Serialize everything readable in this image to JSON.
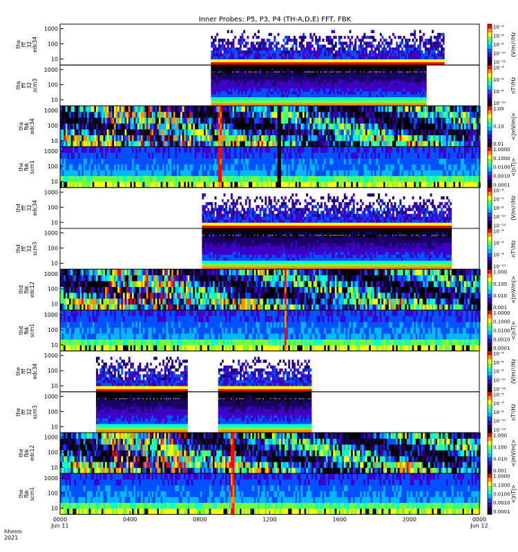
{
  "chart_data": {
    "type": "heatmap",
    "title": "Inner Probes: P5, P3, P4 (TH-A,D,E) FFT, FBK",
    "x_axis": {
      "row_label_1": "hhmm",
      "row_label_2": "2021",
      "tick_labels": [
        "0000",
        "0400",
        "0800",
        "1200",
        "1600",
        "2000",
        "0000"
      ],
      "tick_hours": [
        0,
        4,
        8,
        12,
        16,
        20,
        24
      ],
      "date_labels": [
        "Jun 11",
        "Jun 12"
      ],
      "range_hours": [
        0,
        24
      ]
    },
    "y_axis": {
      "scale": "log",
      "range": [
        4,
        2000
      ],
      "tick_labels": [
        "10",
        "100",
        "1000"
      ],
      "tick_values": [
        10,
        100,
        1000
      ]
    },
    "colormap": [
      "#000000",
      "#1a0066",
      "#3c00c8",
      "#0050ff",
      "#00b8ff",
      "#00ffd0",
      "#70ff40",
      "#ffff00",
      "#ff9000",
      "#ff0000"
    ],
    "panels": [
      {
        "label": [
          "tha",
          "fff",
          "32",
          "edc34"
        ],
        "kind": "fff_e",
        "coverage": [
          [
            8.6,
            21.9
          ]
        ],
        "colorbar": {
          "units": "(V/m)²/Hz",
          "tick_labels": [
            "10⁻⁴",
            "10⁻⁶",
            "10⁻⁸",
            "10⁻¹⁰",
            "10⁻¹²"
          ]
        }
      },
      {
        "label": [
          "tha",
          "fff",
          "32",
          "scm3"
        ],
        "kind": "fff_b",
        "coverage": [
          [
            8.6,
            20.9
          ]
        ],
        "colorbar": {
          "units": "nT²/Hz",
          "tick_labels": [
            "10⁻⁴",
            "10⁻⁶",
            "10⁻⁸",
            "10⁻¹⁰"
          ]
        }
      },
      {
        "label": [
          "tha",
          "fbk",
          "edc34"
        ],
        "kind": "fbk_e",
        "coverage": [
          [
            0,
            24
          ]
        ],
        "gaps": [
          [
            12.35,
            12.6
          ]
        ],
        "spikes": [
          9.0,
          9.2
        ],
        "colorbar": {
          "units": "<|mV/m|>",
          "tick_labels": [
            "1.00",
            "0.10",
            "0.01"
          ]
        }
      },
      {
        "label": [
          "tha",
          "fbk",
          "scm1"
        ],
        "kind": "fbk_b",
        "coverage": [
          [
            0,
            24
          ]
        ],
        "gaps": [
          [
            12.35,
            12.6
          ]
        ],
        "spikes": [
          9.0,
          9.2
        ],
        "colorbar": {
          "units": "<|nT|>",
          "tick_labels": [
            "1.0000",
            "0.1000",
            "0.0100",
            "0.0010",
            "0.0001"
          ]
        }
      },
      {
        "label": [
          "thd",
          "fff",
          "32",
          "edc34"
        ],
        "kind": "fff_e",
        "coverage": [
          [
            8.1,
            22.4
          ]
        ],
        "colorbar": {
          "units": "(V/m)²/Hz",
          "tick_labels": [
            "10⁻⁴",
            "10⁻⁶",
            "10⁻⁸",
            "10⁻¹⁰",
            "10⁻¹²"
          ]
        }
      },
      {
        "label": [
          "thd",
          "fff",
          "32",
          "scm3"
        ],
        "kind": "fff_b",
        "coverage": [
          [
            8.1,
            22.4
          ]
        ],
        "colorbar": {
          "units": "nT²/Hz",
          "tick_labels": [
            "10⁻⁴",
            "10⁻⁶",
            "10⁻⁸",
            "10⁻¹⁰"
          ]
        }
      },
      {
        "label": [
          "thd",
          "fbk",
          "edc12"
        ],
        "kind": "fbk_e",
        "coverage": [
          [
            0,
            24
          ]
        ],
        "spikes": [
          12.75,
          12.95
        ],
        "colorbar": {
          "units": "<|mV/m|>",
          "tick_labels": [
            "1.000",
            "0.100",
            "0.010",
            "0.001"
          ]
        }
      },
      {
        "label": [
          "thd",
          "fbk",
          "scm1"
        ],
        "kind": "fbk_b",
        "coverage": [
          [
            0,
            24
          ]
        ],
        "spikes": [
          12.75,
          12.95
        ],
        "colorbar": {
          "units": "<|nT|>",
          "tick_labels": [
            "1.0000",
            "0.1000",
            "0.0100",
            "0.0010",
            "0.0001"
          ]
        }
      },
      {
        "label": [
          "the",
          "fff",
          "32",
          "edc34"
        ],
        "kind": "fff_e",
        "coverage": [
          [
            2.0,
            7.2
          ],
          [
            9.0,
            14.3
          ]
        ],
        "colorbar": {
          "units": "(V/m)²/Hz",
          "tick_labels": [
            "10⁻⁴",
            "10⁻⁶",
            "10⁻⁸",
            "10⁻¹⁰",
            "10⁻¹²"
          ]
        }
      },
      {
        "label": [
          "the",
          "fff",
          "32",
          "scm3"
        ],
        "kind": "fff_b",
        "coverage": [
          [
            2.0,
            7.2
          ],
          [
            9.0,
            14.3
          ]
        ],
        "colorbar": {
          "units": "nT²/Hz",
          "tick_labels": [
            "10⁻⁴",
            "10⁻⁶",
            "10⁻⁸",
            "10⁻¹⁰",
            "10⁻¹²"
          ]
        }
      },
      {
        "label": [
          "the",
          "fbk",
          "edc12"
        ],
        "kind": "fbk_e",
        "coverage": [
          [
            0,
            24
          ]
        ],
        "spikes": [
          9.7,
          9.9
        ],
        "colorbar": {
          "units": "<|mV/m|>",
          "tick_labels": [
            "1.000",
            "0.100",
            "0.010",
            "0.001"
          ]
        }
      },
      {
        "label": [
          "the",
          "fbk",
          "scm1"
        ],
        "kind": "fbk_b",
        "coverage": [
          [
            0,
            24
          ]
        ],
        "spikes": [
          9.7,
          9.9
        ],
        "colorbar": {
          "units": "<|nT|>",
          "tick_labels": [
            "1.0000",
            "0.1000",
            "0.0100",
            "0.0010",
            "0.0001"
          ]
        }
      }
    ]
  }
}
